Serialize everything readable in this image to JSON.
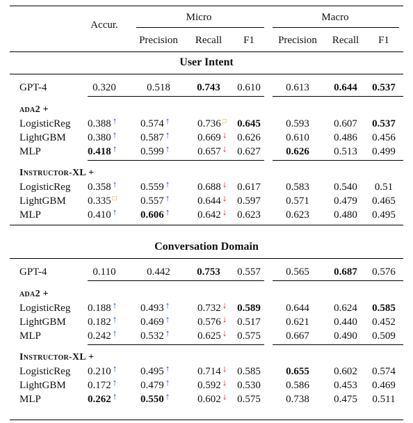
{
  "header": {
    "accuracy": "Accur.",
    "micro": "Micro",
    "macro": "Macro",
    "subcols": [
      "Precision",
      "Recall",
      "F1",
      "Precision",
      "Recall",
      "F1"
    ]
  },
  "sections": [
    {
      "title": "User Intent",
      "baseline": {
        "model": "GPT-4",
        "cells": [
          {
            "v": "0.320",
            "bold": false,
            "mark": null
          },
          {
            "v": "0.518",
            "bold": false,
            "mark": null
          },
          {
            "v": "0.743",
            "bold": true,
            "mark": null
          },
          {
            "v": "0.610",
            "bold": false,
            "mark": null
          },
          {
            "v": "0.613",
            "bold": false,
            "mark": null
          },
          {
            "v": "0.644",
            "bold": true,
            "mark": null
          },
          {
            "v": "0.537",
            "bold": true,
            "mark": null
          }
        ]
      },
      "groups": [
        {
          "label": "ada2 +",
          "rows": [
            {
              "model": "LogisticReg",
              "cells": [
                {
                  "v": "0.388",
                  "bold": false,
                  "mark": "up"
                },
                {
                  "v": "0.574",
                  "bold": false,
                  "mark": "up"
                },
                {
                  "v": "0.736",
                  "bold": false,
                  "mark": "same"
                },
                {
                  "v": "0.645",
                  "bold": true,
                  "mark": null
                },
                {
                  "v": "0.593",
                  "bold": false,
                  "mark": null
                },
                {
                  "v": "0.607",
                  "bold": false,
                  "mark": null
                },
                {
                  "v": "0.537",
                  "bold": true,
                  "mark": null
                }
              ]
            },
            {
              "model": "LightGBM",
              "cells": [
                {
                  "v": "0.380",
                  "bold": false,
                  "mark": "up"
                },
                {
                  "v": "0.587",
                  "bold": false,
                  "mark": "up"
                },
                {
                  "v": "0.669",
                  "bold": false,
                  "mark": "down"
                },
                {
                  "v": "0.626",
                  "bold": false,
                  "mark": null
                },
                {
                  "v": "0.610",
                  "bold": false,
                  "mark": null
                },
                {
                  "v": "0.486",
                  "bold": false,
                  "mark": null
                },
                {
                  "v": "0.456",
                  "bold": false,
                  "mark": null
                }
              ]
            },
            {
              "model": "MLP",
              "cells": [
                {
                  "v": "0.418",
                  "bold": true,
                  "mark": "up"
                },
                {
                  "v": "0.599",
                  "bold": false,
                  "mark": "up"
                },
                {
                  "v": "0.657",
                  "bold": false,
                  "mark": "down"
                },
                {
                  "v": "0.627",
                  "bold": false,
                  "mark": null
                },
                {
                  "v": "0.626",
                  "bold": true,
                  "mark": null
                },
                {
                  "v": "0.513",
                  "bold": false,
                  "mark": null
                },
                {
                  "v": "0.499",
                  "bold": false,
                  "mark": null
                }
              ]
            }
          ]
        },
        {
          "label": "Instructor-XL +",
          "rows": [
            {
              "model": "LogisticReg",
              "cells": [
                {
                  "v": "0.358",
                  "bold": false,
                  "mark": "up"
                },
                {
                  "v": "0.559",
                  "bold": false,
                  "mark": "up"
                },
                {
                  "v": "0.688",
                  "bold": false,
                  "mark": "down"
                },
                {
                  "v": "0.617",
                  "bold": false,
                  "mark": null
                },
                {
                  "v": "0.583",
                  "bold": false,
                  "mark": null
                },
                {
                  "v": "0.540",
                  "bold": false,
                  "mark": null
                },
                {
                  "v": "0.51",
                  "bold": false,
                  "mark": null
                }
              ]
            },
            {
              "model": "LightGBM",
              "cells": [
                {
                  "v": "0.335",
                  "bold": false,
                  "mark": "same"
                },
                {
                  "v": "0.557",
                  "bold": false,
                  "mark": "up"
                },
                {
                  "v": "0.644",
                  "bold": false,
                  "mark": "down"
                },
                {
                  "v": "0.597",
                  "bold": false,
                  "mark": null
                },
                {
                  "v": "0.571",
                  "bold": false,
                  "mark": null
                },
                {
                  "v": "0.479",
                  "bold": false,
                  "mark": null
                },
                {
                  "v": "0.465",
                  "bold": false,
                  "mark": null
                }
              ]
            },
            {
              "model": "MLP",
              "cells": [
                {
                  "v": "0.410",
                  "bold": false,
                  "mark": "up"
                },
                {
                  "v": "0.606",
                  "bold": true,
                  "mark": "up"
                },
                {
                  "v": "0.642",
                  "bold": false,
                  "mark": "down"
                },
                {
                  "v": "0.623",
                  "bold": false,
                  "mark": null
                },
                {
                  "v": "0.623",
                  "bold": false,
                  "mark": null
                },
                {
                  "v": "0.480",
                  "bold": false,
                  "mark": null
                },
                {
                  "v": "0.495",
                  "bold": false,
                  "mark": null
                }
              ]
            }
          ]
        }
      ]
    },
    {
      "title": "Conversation Domain",
      "baseline": {
        "model": "GPT-4",
        "cells": [
          {
            "v": "0.110",
            "bold": false,
            "mark": null
          },
          {
            "v": "0.442",
            "bold": false,
            "mark": null
          },
          {
            "v": "0.753",
            "bold": true,
            "mark": null
          },
          {
            "v": "0.557",
            "bold": false,
            "mark": null
          },
          {
            "v": "0.565",
            "bold": false,
            "mark": null
          },
          {
            "v": "0.687",
            "bold": true,
            "mark": null
          },
          {
            "v": "0.576",
            "bold": false,
            "mark": null
          }
        ]
      },
      "groups": [
        {
          "label": "ada2 +",
          "rows": [
            {
              "model": "LogisticReg",
              "cells": [
                {
                  "v": "0.188",
                  "bold": false,
                  "mark": "up"
                },
                {
                  "v": "0.493",
                  "bold": false,
                  "mark": "up"
                },
                {
                  "v": "0.732",
                  "bold": false,
                  "mark": "down"
                },
                {
                  "v": "0.589",
                  "bold": true,
                  "mark": null
                },
                {
                  "v": "0.644",
                  "bold": false,
                  "mark": null
                },
                {
                  "v": "0.624",
                  "bold": false,
                  "mark": null
                },
                {
                  "v": "0.585",
                  "bold": true,
                  "mark": null
                }
              ]
            },
            {
              "model": "LightGBM",
              "cells": [
                {
                  "v": "0.182",
                  "bold": false,
                  "mark": "up"
                },
                {
                  "v": "0.469",
                  "bold": false,
                  "mark": "up"
                },
                {
                  "v": "0.576",
                  "bold": false,
                  "mark": "down"
                },
                {
                  "v": "0.517",
                  "bold": false,
                  "mark": null
                },
                {
                  "v": "0.621",
                  "bold": false,
                  "mark": null
                },
                {
                  "v": "0.440",
                  "bold": false,
                  "mark": null
                },
                {
                  "v": "0.452",
                  "bold": false,
                  "mark": null
                }
              ]
            },
            {
              "model": "MLP",
              "cells": [
                {
                  "v": "0.242",
                  "bold": false,
                  "mark": "up"
                },
                {
                  "v": "0.532",
                  "bold": false,
                  "mark": "up"
                },
                {
                  "v": "0.625",
                  "bold": false,
                  "mark": "down"
                },
                {
                  "v": "0.575",
                  "bold": false,
                  "mark": null
                },
                {
                  "v": "0.667",
                  "bold": false,
                  "mark": null
                },
                {
                  "v": "0.490",
                  "bold": false,
                  "mark": null
                },
                {
                  "v": "0.509",
                  "bold": false,
                  "mark": null
                }
              ]
            }
          ]
        },
        {
          "label": "Instructor-XL +",
          "rows": [
            {
              "model": "LogisticReg",
              "cells": [
                {
                  "v": "0.210",
                  "bold": false,
                  "mark": "up"
                },
                {
                  "v": "0.495",
                  "bold": false,
                  "mark": "up"
                },
                {
                  "v": "0.714",
                  "bold": false,
                  "mark": "down"
                },
                {
                  "v": "0.585",
                  "bold": false,
                  "mark": null
                },
                {
                  "v": "0.655",
                  "bold": true,
                  "mark": null
                },
                {
                  "v": "0.602",
                  "bold": false,
                  "mark": null
                },
                {
                  "v": "0.574",
                  "bold": false,
                  "mark": null
                }
              ]
            },
            {
              "model": "LightGBM",
              "cells": [
                {
                  "v": "0.172",
                  "bold": false,
                  "mark": "up"
                },
                {
                  "v": "0.479",
                  "bold": false,
                  "mark": "up"
                },
                {
                  "v": "0.592",
                  "bold": false,
                  "mark": "down"
                },
                {
                  "v": "0.530",
                  "bold": false,
                  "mark": null
                },
                {
                  "v": "0.586",
                  "bold": false,
                  "mark": null
                },
                {
                  "v": "0.453",
                  "bold": false,
                  "mark": null
                },
                {
                  "v": "0.469",
                  "bold": false,
                  "mark": null
                }
              ]
            },
            {
              "model": "MLP",
              "cells": [
                {
                  "v": "0.262",
                  "bold": true,
                  "mark": "up"
                },
                {
                  "v": "0.550",
                  "bold": true,
                  "mark": "up"
                },
                {
                  "v": "0.602",
                  "bold": false,
                  "mark": "down"
                },
                {
                  "v": "0.575",
                  "bold": false,
                  "mark": null
                },
                {
                  "v": "0.738",
                  "bold": false,
                  "mark": null
                },
                {
                  "v": "0.475",
                  "bold": false,
                  "mark": null
                },
                {
                  "v": "0.511",
                  "bold": false,
                  "mark": null
                }
              ]
            }
          ]
        }
      ]
    }
  ],
  "marks": {
    "up": {
      "glyph": "↑",
      "color": "#1f3dff"
    },
    "down": {
      "glyph": "↓",
      "color": "#e3151a"
    },
    "same": {
      "glyph": "□",
      "color": "#d98c10"
    }
  }
}
